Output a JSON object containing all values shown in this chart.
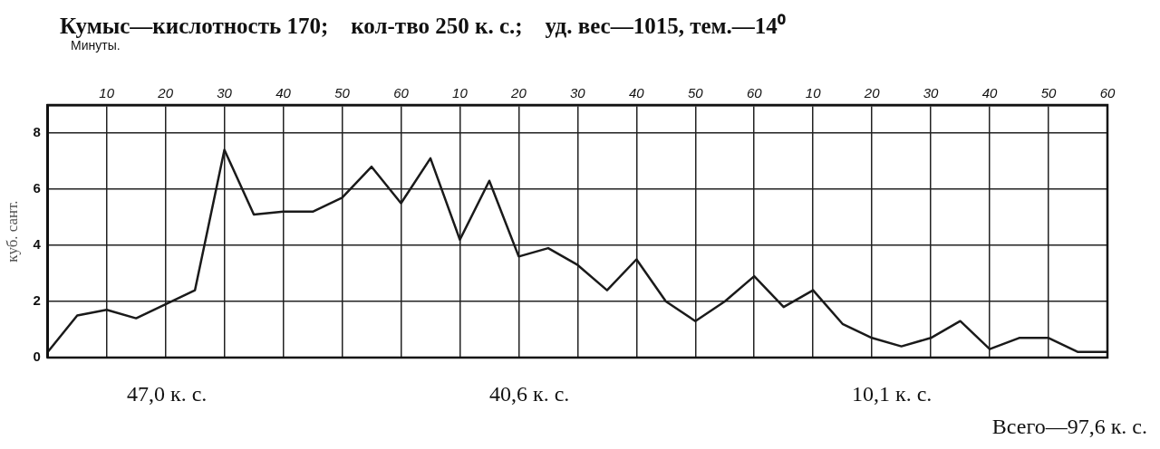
{
  "chart_data": {
    "type": "line",
    "title": "Кумыс—кислотность 170;    кол-тво 250 к. с.;    уд. вес—1015, тем.—14⁰",
    "xlabel": "Минуты.",
    "ylabel": "куб. сант.",
    "categories": [
      null,
      null,
      "10",
      null,
      "20",
      null,
      "30",
      null,
      "40",
      null,
      "50",
      null,
      "60",
      null,
      "10",
      null,
      "20",
      null,
      "30",
      null,
      "40",
      null,
      "50",
      null,
      "60",
      null,
      "10",
      null,
      "20",
      null,
      "30",
      null,
      "40",
      null,
      "50",
      null,
      "60"
    ],
    "series": [
      {
        "color": "#1a1a1a",
        "values": [
          0.2,
          1.5,
          1.7,
          1.4,
          1.9,
          2.4,
          7.4,
          5.1,
          5.2,
          5.2,
          5.7,
          6.8,
          5.5,
          7.1,
          4.2,
          6.3,
          3.6,
          3.9,
          3.3,
          2.4,
          3.5,
          2.0,
          1.3,
          2.0,
          2.9,
          1.8,
          2.4,
          1.2,
          0.7,
          0.4,
          0.7,
          1.3,
          0.3,
          0.7,
          0.7,
          0.2,
          0.2
        ]
      }
    ],
    "ylim": [
      0,
      9
    ],
    "yticks": [
      0,
      2,
      4,
      6,
      8
    ],
    "grid": true,
    "legend": false,
    "marker": "none",
    "line_style": "solid",
    "annotations": [
      "47,0 к. с.",
      "40,6 к. с.",
      "10,1 к. с.",
      "Всего—97,6 к. с."
    ]
  }
}
